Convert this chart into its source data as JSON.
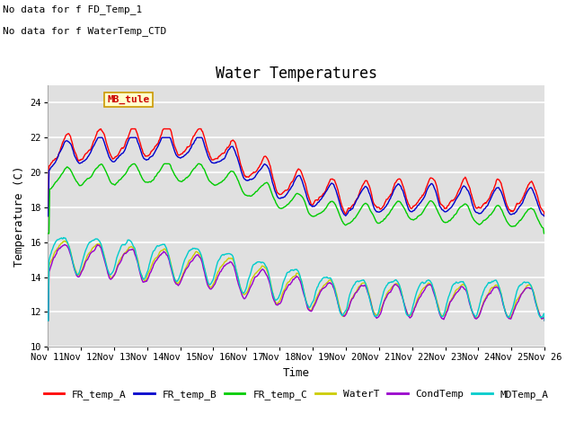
{
  "title": "Water Temperatures",
  "xlabel": "Time",
  "ylabel": "Temperature (C)",
  "ylim": [
    10,
    25
  ],
  "xlim": [
    0,
    15
  ],
  "yticks": [
    10,
    12,
    14,
    16,
    18,
    20,
    22,
    24
  ],
  "xtick_labels": [
    "Nov 11",
    "Nov 12",
    "Nov 13",
    "Nov 14",
    "Nov 15",
    "Nov 16",
    "Nov 17",
    "Nov 18",
    "Nov 19",
    "Nov 20",
    "Nov 21",
    "Nov 22",
    "Nov 23",
    "Nov 24",
    "Nov 25",
    "Nov 26"
  ],
  "note1": "No data for f FD_Temp_1",
  "note2": "No data for f WaterTemp_CTD",
  "station_label": "MB_tule",
  "legend": [
    {
      "label": "FR_temp_A",
      "color": "#ff0000"
    },
    {
      "label": "FR_temp_B",
      "color": "#0000cc"
    },
    {
      "label": "FR_temp_C",
      "color": "#00cc00"
    },
    {
      "label": "WaterT",
      "color": "#cccc00"
    },
    {
      "label": "CondTemp",
      "color": "#9900cc"
    },
    {
      "label": "MDTemp_A",
      "color": "#00cccc"
    }
  ],
  "background_color": "#ffffff",
  "plot_bg_color": "#e0e0e0",
  "grid_color": "#ffffff",
  "title_fontsize": 12,
  "axis_fontsize": 9,
  "tick_fontsize": 7.5,
  "note_fontsize": 8,
  "station_fontsize": 8
}
